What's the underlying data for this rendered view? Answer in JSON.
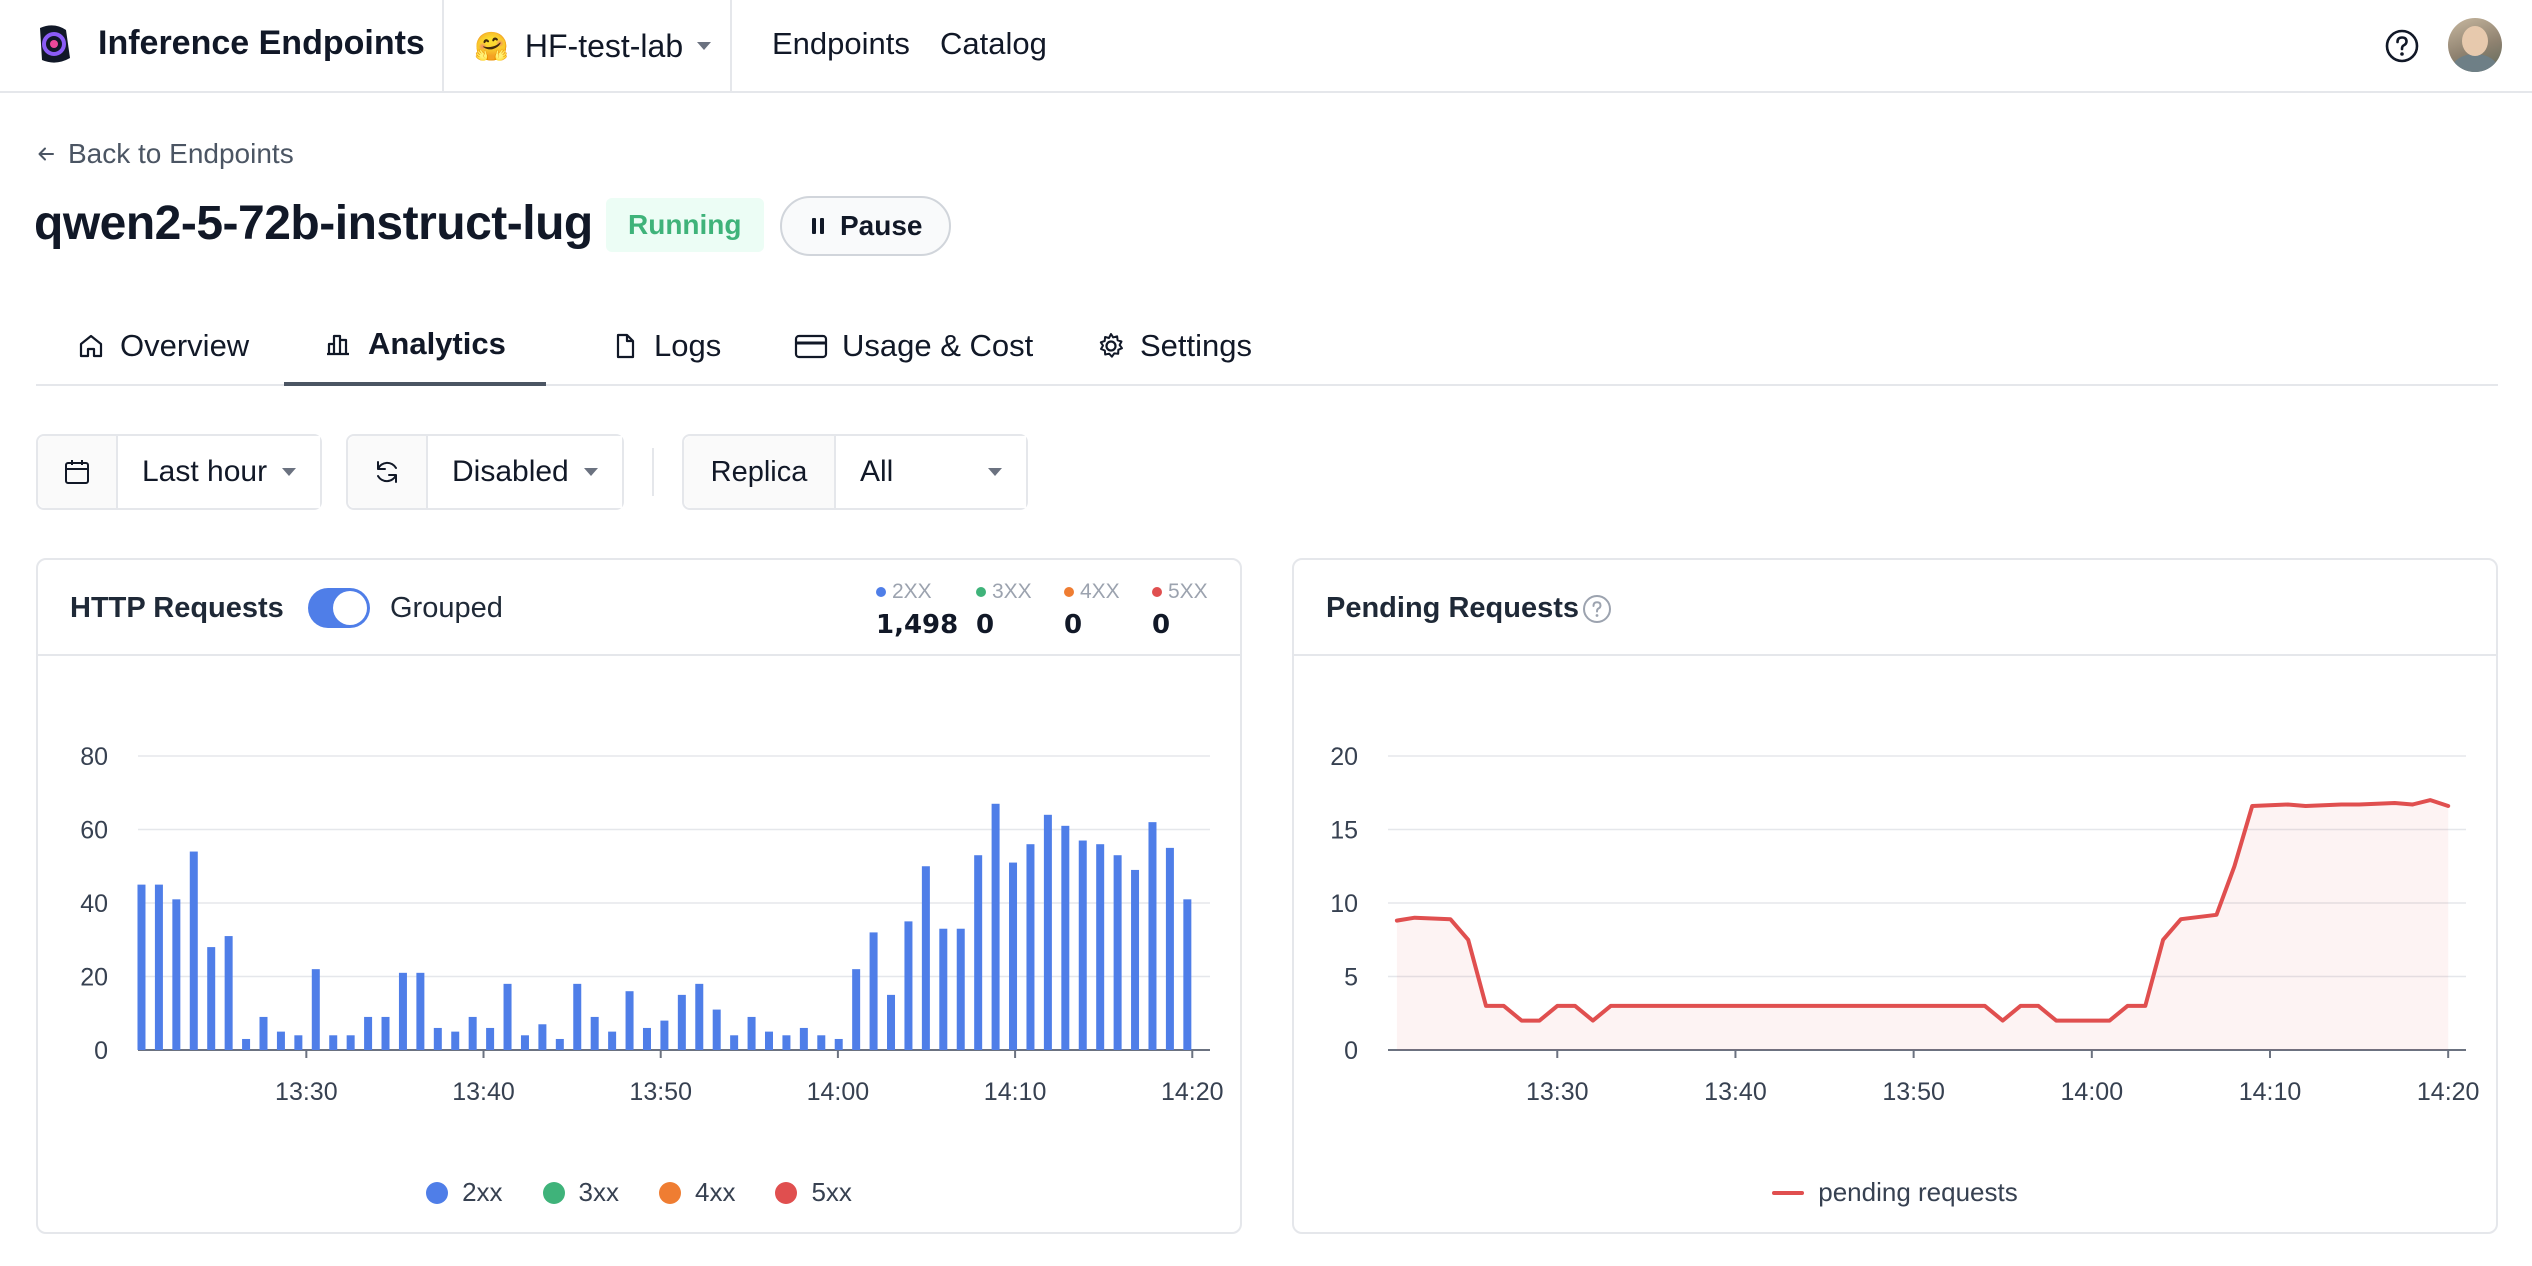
{
  "app": {
    "title": "Inference Endpoints",
    "org_emoji": "🤗",
    "org_name": "HF-test-lab",
    "nav": [
      "Endpoints",
      "Catalog"
    ]
  },
  "page": {
    "back_label": "Back to Endpoints",
    "endpoint_name": "qwen2-5-72b-instruct-lug",
    "status": "Running",
    "pause_label": "Pause",
    "tabs": [
      "Overview",
      "Analytics",
      "Logs",
      "Usage & Cost",
      "Settings"
    ],
    "active_tab": "Analytics"
  },
  "filters": {
    "time_range": "Last hour",
    "refresh": "Disabled",
    "replica_label": "Replica",
    "replica_value": "All"
  },
  "http_card": {
    "title": "HTTP Requests",
    "toggle_label": "Grouped",
    "toggle_on": true,
    "stats": [
      {
        "label": "2XX",
        "value": "1,498",
        "color": "#4f7ee8"
      },
      {
        "label": "3XX",
        "value": "0",
        "color": "#3fb37a"
      },
      {
        "label": "4XX",
        "value": "0",
        "color": "#ef7d32"
      },
      {
        "label": "5XX",
        "value": "0",
        "color": "#e04f4f"
      }
    ],
    "legend": [
      {
        "label": "2xx",
        "color": "#4f7ee8"
      },
      {
        "label": "3xx",
        "color": "#3fb37a"
      },
      {
        "label": "4xx",
        "color": "#ef7d32"
      },
      {
        "label": "5xx",
        "color": "#e04f4f"
      }
    ]
  },
  "pending_card": {
    "title": "Pending Requests",
    "legend_label": "pending requests",
    "line_color": "#e04f4f"
  },
  "chart_data": [
    {
      "type": "bar",
      "title": "HTTP Requests",
      "ylim": [
        0,
        80
      ],
      "yticks": [
        "0",
        "20",
        "40",
        "60",
        "80"
      ],
      "xticks": [
        "13:30",
        "13:40",
        "13:50",
        "14:00",
        "14:10",
        "14:20"
      ],
      "series": [
        {
          "name": "2xx",
          "color": "#4f7ee8",
          "values": [
            45,
            45,
            41,
            54,
            28,
            31,
            3,
            9,
            5,
            4,
            22,
            4,
            4,
            9,
            9,
            21,
            21,
            6,
            5,
            9,
            6,
            18,
            4,
            7,
            3,
            18,
            9,
            5,
            16,
            6,
            8,
            15,
            18,
            11,
            4,
            9,
            5,
            4,
            6,
            4,
            3,
            22,
            32,
            15,
            35,
            50,
            33,
            33,
            53,
            67,
            51,
            56,
            64,
            61,
            57,
            56,
            53,
            49,
            62,
            55,
            41
          ]
        }
      ]
    },
    {
      "type": "line",
      "title": "Pending Requests",
      "ylim": [
        0,
        20
      ],
      "yticks": [
        "0",
        "5",
        "10",
        "15",
        "20"
      ],
      "xticks": [
        "13:30",
        "13:40",
        "13:50",
        "14:00",
        "14:10",
        "14:20"
      ],
      "series": [
        {
          "name": "pending requests",
          "color": "#e04f4f",
          "points": [
            [
              "13:21",
              8.8
            ],
            [
              "13:22",
              9.0
            ],
            [
              "13:24",
              8.9
            ],
            [
              "13:25",
              7.5
            ],
            [
              "13:26",
              3.0
            ],
            [
              "13:27",
              3.0
            ],
            [
              "13:28",
              2.0
            ],
            [
              "13:29",
              2.0
            ],
            [
              "13:30",
              3.0
            ],
            [
              "13:31",
              3.0
            ],
            [
              "13:32",
              2.0
            ],
            [
              "13:33",
              3.0
            ],
            [
              "13:54",
              3.0
            ],
            [
              "13:55",
              2.0
            ],
            [
              "13:56",
              3.0
            ],
            [
              "13:57",
              3.0
            ],
            [
              "13:58",
              2.0
            ],
            [
              "14:01",
              2.0
            ],
            [
              "14:02",
              3.0
            ],
            [
              "14:03",
              3.0
            ],
            [
              "14:04",
              7.5
            ],
            [
              "14:05",
              8.9
            ],
            [
              "14:07",
              9.2
            ],
            [
              "14:08",
              12.5
            ],
            [
              "14:09",
              16.6
            ],
            [
              "14:11",
              16.7
            ],
            [
              "14:12",
              16.6
            ],
            [
              "14:14",
              16.7
            ],
            [
              "14:15",
              16.7
            ],
            [
              "14:17",
              16.8
            ],
            [
              "14:18",
              16.7
            ],
            [
              "14:19",
              17.0
            ],
            [
              "14:20",
              16.6
            ]
          ]
        }
      ]
    }
  ]
}
